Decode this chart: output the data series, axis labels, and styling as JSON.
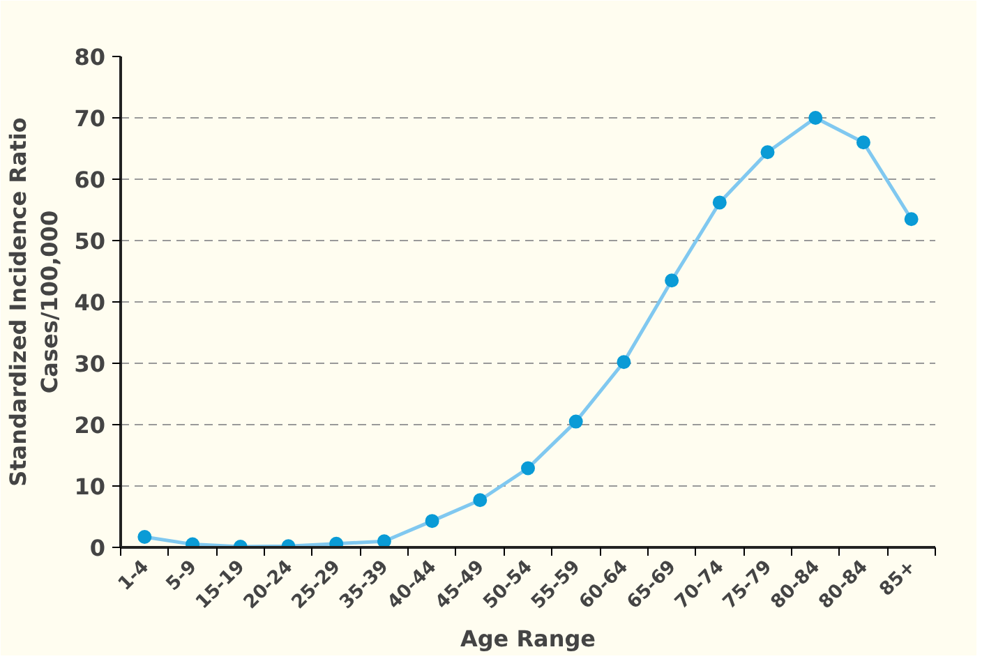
{
  "chart_data": {
    "type": "line",
    "xlabel": "Age Range",
    "ylabel": "Standardized Incidence Ratio\nCases/100,000",
    "categories": [
      "1-4",
      "5-9",
      "15-19",
      "20-24",
      "25-29",
      "35-39",
      "40-44",
      "45-49",
      "50-54",
      "55-59",
      "60-64",
      "65-69",
      "70-74",
      "75-79",
      "80-84",
      "80-84",
      "85+"
    ],
    "series": [
      {
        "color": "#0a9bd6",
        "values": [
          1.7,
          0.5,
          0.1,
          0.2,
          0.6,
          1.0,
          4.3,
          7.7,
          12.9,
          20.5,
          30.2,
          43.5,
          56.2,
          64.4,
          70.0,
          66.0,
          53.5
        ]
      }
    ],
    "ylim": [
      0,
      80
    ],
    "yticks": [
      0,
      10,
      20,
      30,
      40,
      50,
      60,
      70,
      80
    ],
    "grid": "y",
    "marker": "circle",
    "line_style": "solid"
  }
}
